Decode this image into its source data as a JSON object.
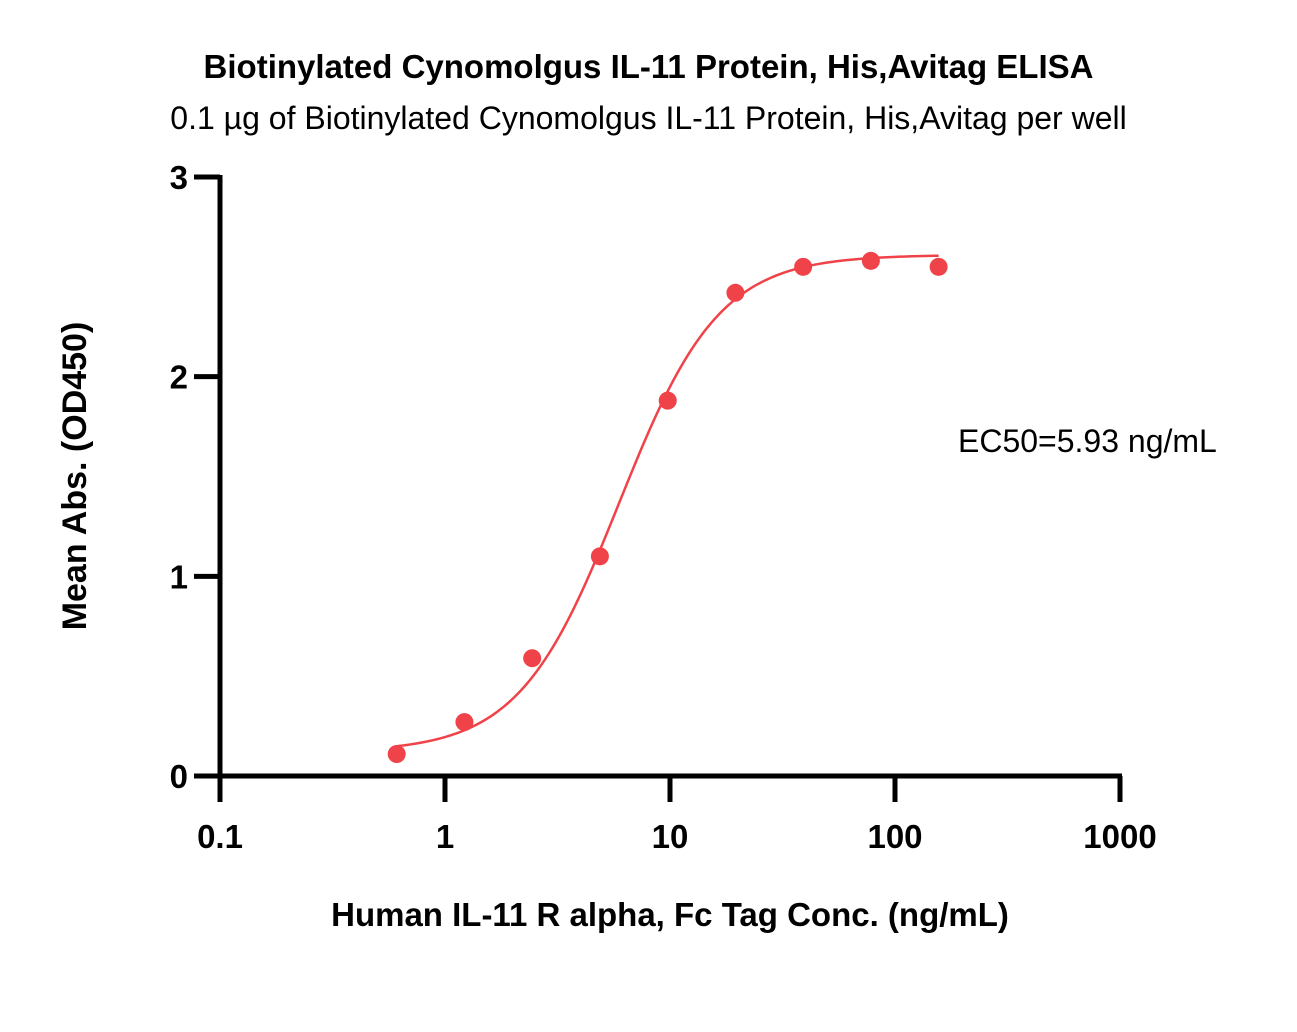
{
  "chart_data": {
    "type": "scatter",
    "title": "Biotinylated Cynomolgus IL-11 Protein, His,Avitag ELISA",
    "subtitle": "0.1 µg of Biotinylated Cynomolgus IL-11 Protein, His,Avitag per well",
    "xlabel": "Human IL-11 R alpha, Fc Tag Conc. (ng/mL)",
    "ylabel": "Mean Abs. (OD450)",
    "xscale": "log",
    "xlim": [
      0.1,
      1000
    ],
    "ylim": [
      0,
      3
    ],
    "x_ticks": [
      0.1,
      1,
      10,
      100,
      1000
    ],
    "x_tick_labels": [
      "0.1",
      "1",
      "10",
      "100",
      "1000"
    ],
    "y_ticks": [
      0,
      1,
      2,
      3
    ],
    "y_tick_labels": [
      "0",
      "1",
      "2",
      "3"
    ],
    "grid": false,
    "color": "#f04349",
    "series": [
      {
        "points": [
          {
            "x": 0.61,
            "y": 0.11
          },
          {
            "x": 1.22,
            "y": 0.27
          },
          {
            "x": 2.44,
            "y": 0.59
          },
          {
            "x": 4.88,
            "y": 1.1
          },
          {
            "x": 9.77,
            "y": 1.88
          },
          {
            "x": 19.53,
            "y": 2.42
          },
          {
            "x": 39.06,
            "y": 2.55
          },
          {
            "x": 78.13,
            "y": 2.58
          },
          {
            "x": 156.25,
            "y": 2.55
          }
        ],
        "fit": {
          "bottom": 0.12,
          "top": 2.61,
          "ec50": 5.93,
          "hill": 1.95,
          "x_from": 0.61,
          "x_to": 156.25
        }
      }
    ],
    "annotations": [
      "EC50=5.93 ng/mL"
    ]
  }
}
